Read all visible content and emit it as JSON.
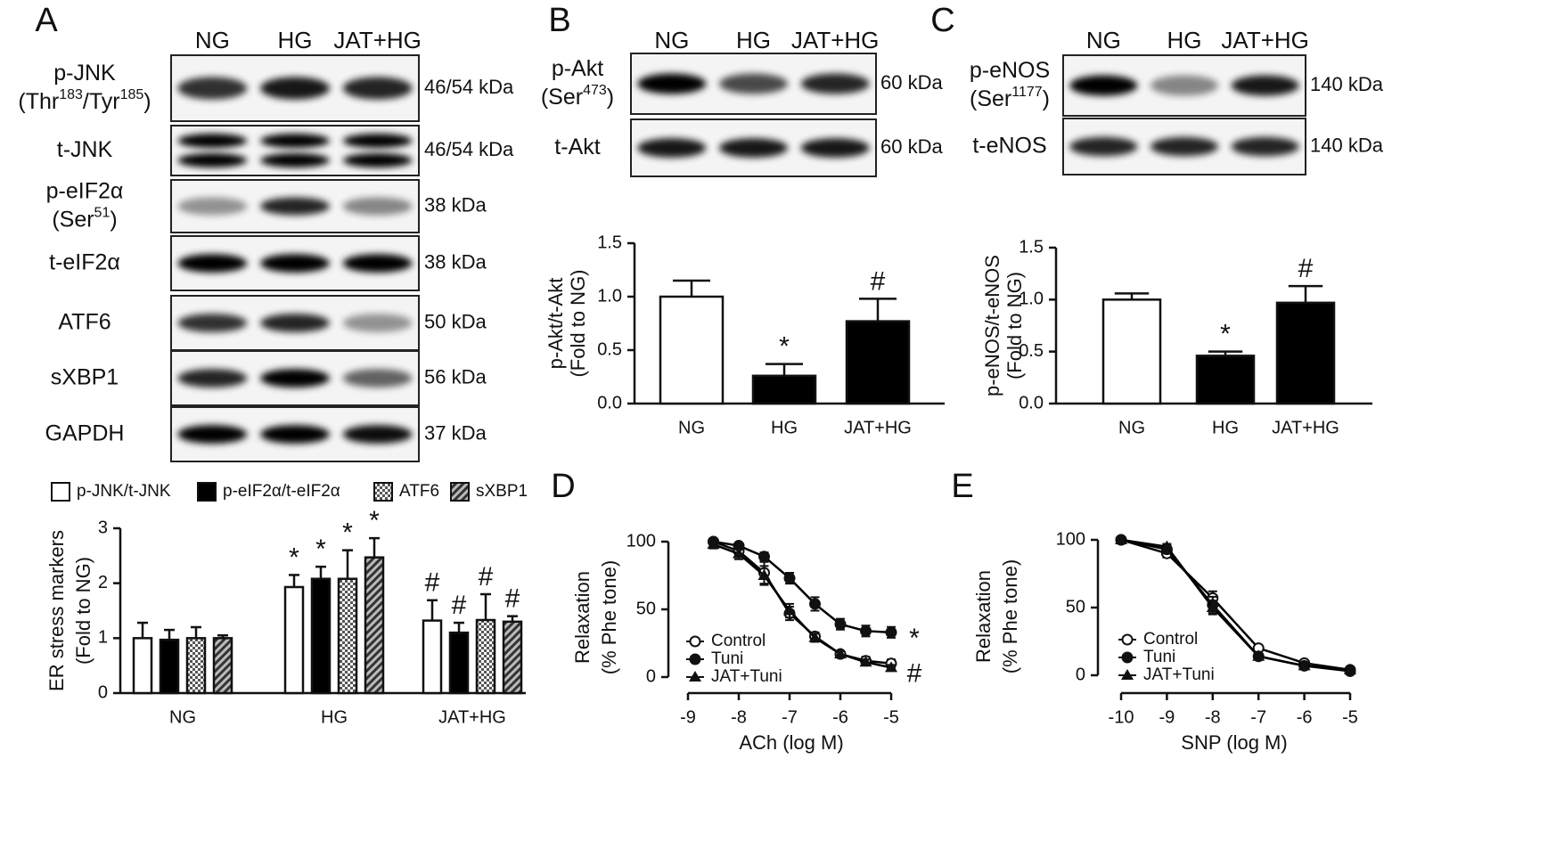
{
  "panel_labels": [
    "A",
    "B",
    "C",
    "D",
    "E"
  ],
  "blots": [
    {
      "lanes": [
        "NG",
        "HG",
        "JAT+HG"
      ],
      "rows": [
        {
          "label": [
            [
              "p-JNK"
            ],
            [
              "(Thr",
              "183",
              "/Tyr",
              "185",
              ")"
            ]
          ],
          "kda": "46/54 kDa"
        },
        {
          "label": [
            [
              "t-JNK"
            ]
          ],
          "kda": "46/54 kDa"
        },
        {
          "label": [
            [
              "p-eIF2α"
            ],
            [
              "(Ser",
              "51",
              ")"
            ]
          ],
          "kda": "38 kDa"
        },
        {
          "label": [
            [
              "t-eIF2α"
            ]
          ],
          "kda": "38 kDa"
        },
        {
          "label": [
            [
              "ATF6"
            ]
          ],
          "kda": "50 kDa"
        },
        {
          "label": [
            [
              "sXBP1"
            ]
          ],
          "kda": "56 kDa"
        },
        {
          "label": [
            [
              "GAPDH"
            ]
          ],
          "kda": "37 kDa"
        }
      ]
    },
    {
      "lanes": [
        "NG",
        "HG",
        "JAT+HG"
      ],
      "rows": [
        {
          "label": [
            [
              "p-Akt"
            ],
            [
              "(Ser",
              "473",
              ")"
            ]
          ],
          "kda": "60 kDa"
        },
        {
          "label": [
            [
              "t-Akt"
            ]
          ],
          "kda": "60 kDa"
        }
      ]
    },
    {
      "lanes": [
        "NG",
        "HG",
        "JAT+HG"
      ],
      "rows": [
        {
          "label": [
            [
              "p-eNOS"
            ],
            [
              "(Ser",
              "1177",
              ")"
            ]
          ],
          "kda": "140 kDa"
        },
        {
          "label": [
            [
              "t-eNOS"
            ]
          ],
          "kda": "140 kDa"
        }
      ]
    }
  ],
  "chart_data": [
    {
      "type": "bar",
      "categories": [
        "NG",
        "HG",
        "JAT+HG"
      ],
      "ylabel": [
        "ER stress markers",
        "(Fold to NG)"
      ],
      "ylim": [
        0,
        3
      ],
      "yticks": [
        0,
        1,
        2,
        3
      ],
      "legend": "top",
      "series": [
        {
          "name": "p-JNK/t-JNK",
          "color": "#ffffff",
          "values": [
            1.0,
            1.93,
            1.32
          ],
          "errors": [
            0.28,
            0.22,
            0.37
          ],
          "annotations": [
            null,
            "*",
            "#"
          ]
        },
        {
          "name": "p-eIF2α/t-eIF2α",
          "color": "#000000",
          "values": [
            0.97,
            2.08,
            1.1
          ],
          "errors": [
            0.18,
            0.22,
            0.18
          ],
          "annotations": [
            null,
            "*",
            "#"
          ]
        },
        {
          "name": "ATF6",
          "color": "#000000",
          "pattern": "checker",
          "values": [
            1.0,
            2.08,
            1.33
          ],
          "errors": [
            0.2,
            0.52,
            0.47
          ],
          "annotations": [
            null,
            "*",
            "#"
          ]
        },
        {
          "name": "sXBP1",
          "color": "#000000",
          "pattern": "hatch",
          "values": [
            1.0,
            2.47,
            1.3
          ],
          "errors": [
            0.05,
            0.35,
            0.1
          ],
          "annotations": [
            null,
            "*",
            "#"
          ]
        }
      ]
    },
    {
      "type": "bar",
      "categories": [
        "NG",
        "HG",
        "JAT+HG"
      ],
      "ylabel": [
        "p-Akt/t-Akt",
        "(Fold to NG)"
      ],
      "ylim": [
        0,
        1.5
      ],
      "yticks": [
        {
          "value": 0,
          "label": "0.0"
        },
        0.5,
        {
          "value": 1,
          "label": "1.0"
        },
        1.5
      ],
      "colors": [
        "#ffffff",
        "#000000",
        "#000000"
      ],
      "values": [
        1.0,
        0.26,
        0.77
      ],
      "errors": [
        0.15,
        0.11,
        0.21
      ],
      "annotations": [
        null,
        "*",
        "#"
      ]
    },
    {
      "type": "bar",
      "categories": [
        "NG",
        "HG",
        "JAT+HG"
      ],
      "ylabel": [
        "p-eNOS/t-eNOS",
        "(Fold to NG)"
      ],
      "ylim": [
        0,
        1.5
      ],
      "yticks": [
        {
          "value": 0,
          "label": "0.0"
        },
        0.5,
        {
          "value": 1,
          "label": "1.0"
        },
        1.5
      ],
      "colors": [
        "#ffffff",
        "#000000",
        "#000000"
      ],
      "values": [
        1.0,
        0.46,
        0.97
      ],
      "errors": [
        0.06,
        0.04,
        0.16
      ],
      "annotations": [
        null,
        "*",
        "#"
      ]
    },
    {
      "type": "line",
      "xlabel": "ACh (log M)",
      "ylabel": [
        "Relaxation",
        "(% Phe tone)"
      ],
      "x": [
        -8.5,
        -8,
        -7.5,
        -7,
        -6.5,
        -6,
        -5.5,
        -5
      ],
      "xlim": [
        -9,
        -5
      ],
      "xticks": [
        -9,
        -8,
        -7,
        -6,
        -5
      ],
      "ylim": [
        0,
        100
      ],
      "yticks": [
        0,
        50,
        100
      ],
      "legend": "lower left",
      "series": [
        {
          "name": "Control",
          "marker": "open-circle",
          "color": "#000000",
          "values": [
            100,
            93,
            77,
            47,
            30,
            17,
            12,
            10
          ],
          "errors": [
            2,
            3,
            8,
            5,
            3,
            2,
            3,
            3
          ]
        },
        {
          "name": "Tuni",
          "marker": "circle",
          "color": "#000000",
          "values": [
            100,
            97,
            89,
            73,
            54,
            39,
            34,
            33
          ],
          "errors": [
            2,
            2,
            3,
            4,
            5,
            4,
            4,
            4
          ]
        },
        {
          "name": "JAT+Tuni",
          "marker": "triangle",
          "color": "#000000",
          "values": [
            98,
            91,
            75,
            49,
            29,
            17,
            11,
            7
          ],
          "errors": [
            3,
            4,
            7,
            5,
            3,
            2,
            2,
            2
          ]
        }
      ],
      "series_annotations": [
        null,
        "*",
        "#"
      ]
    },
    {
      "type": "line",
      "xlabel": "SNP (log M)",
      "ylabel": [
        "Relaxation",
        "(% Phe tone)"
      ],
      "x": [
        -10,
        -9,
        -8,
        -7,
        -6,
        -5
      ],
      "xlim": [
        -10,
        -5
      ],
      "xticks": [
        -10,
        -9,
        -8,
        -7,
        -6,
        -5
      ],
      "ylim": [
        0,
        100
      ],
      "yticks": [
        0,
        50,
        100
      ],
      "legend": "lower left",
      "series": [
        {
          "name": "Control",
          "marker": "open-circle",
          "color": "#000000",
          "values": [
            100,
            90,
            57,
            20,
            9,
            4
          ],
          "errors": [
            1,
            3,
            5,
            2,
            1,
            1
          ]
        },
        {
          "name": "Tuni",
          "marker": "circle",
          "color": "#000000",
          "values": [
            100,
            93,
            52,
            14,
            7,
            3
          ],
          "errors": [
            1,
            3,
            6,
            2,
            1,
            1
          ]
        },
        {
          "name": "JAT+Tuni",
          "marker": "triangle",
          "color": "#000000",
          "values": [
            100,
            95,
            50,
            14,
            7,
            4
          ],
          "errors": [
            1,
            2,
            5,
            2,
            1,
            1
          ]
        }
      ]
    }
  ]
}
